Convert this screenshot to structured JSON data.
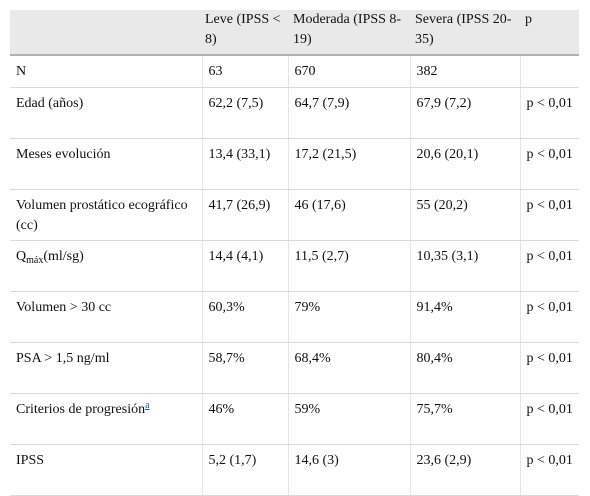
{
  "table": {
    "headers": [
      "",
      "Leve (IPSS < 8)",
      "Moderada (IPSS 8-19)",
      "Severa (IPSS 20-35)",
      "p"
    ],
    "rows": [
      {
        "label": "N",
        "cells": [
          "63",
          "670",
          "382",
          ""
        ]
      },
      {
        "label": "Edad (años)",
        "cells": [
          "62,2 (7,5)",
          "64,7 (7,9)",
          "67,9 (7,2)",
          "p < 0,01"
        ]
      },
      {
        "label": "Meses evolución",
        "cells": [
          "13,4 (33,1)",
          "17,2 (21,5)",
          "20,6 (20,1)",
          "p < 0,01"
        ]
      },
      {
        "label": "Volumen prostático ecográfico (cc)",
        "cells": [
          "41,7 (26,9)",
          "46 (17,6)",
          "55 (20,2)",
          "p < 0,01"
        ]
      },
      {
        "label": "Q",
        "label_sub": "máx",
        "label_tail": "(ml/sg)",
        "cells": [
          "14,4 (4,1)",
          "11,5 (2,7)",
          "10,35 (3,1)",
          "p < 0,01"
        ]
      },
      {
        "label": "Volumen > 30 cc",
        "cells": [
          "60,3%",
          "79%",
          "91,4%",
          "p < 0,01"
        ]
      },
      {
        "label": "PSA > 1,5 ng/ml",
        "cells": [
          "58,7%",
          "68,4%",
          "80,4%",
          "p < 0,01"
        ]
      },
      {
        "label": "Criterios de progresión",
        "footnote": "a",
        "cells": [
          "46%",
          "59%",
          "75,7%",
          "p < 0,01"
        ]
      },
      {
        "label": "IPSS",
        "cells": [
          "5,2 (1,7)",
          "14,6 (3)",
          "23,6 (2,9)",
          "p < 0,01"
        ]
      }
    ]
  }
}
